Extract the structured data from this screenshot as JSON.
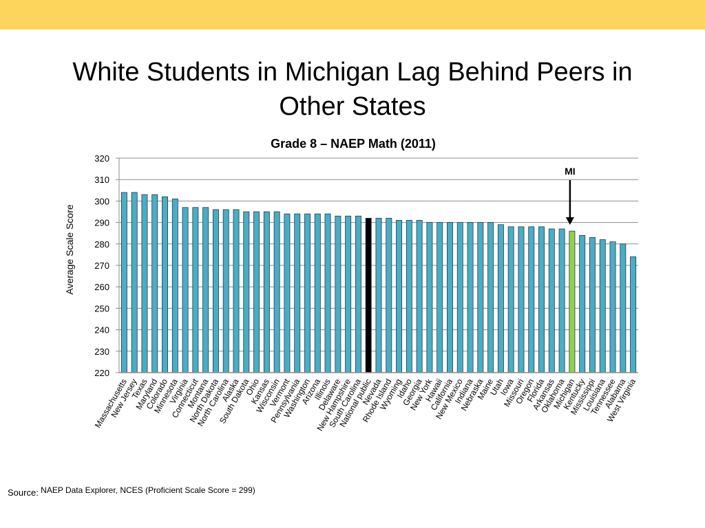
{
  "slide": {
    "title_line1": "White Students in Michigan Lag Behind Peers in",
    "title_line2": "Other States",
    "source_label": "Source:",
    "source_text": "NAEP Data Explorer, NCES (Proficient Scale Score = 299)",
    "top_bar_color": "#fdd55c"
  },
  "chart_data": {
    "type": "bar",
    "title": "Grade 8 – NAEP Math (2011)",
    "ylabel": "Average Scale Score",
    "ylim": [
      220,
      320
    ],
    "yticks": [
      220,
      230,
      240,
      250,
      260,
      270,
      280,
      290,
      300,
      310,
      320
    ],
    "grid": true,
    "annotation": {
      "label": "MI",
      "target": "Michigan"
    },
    "colors": {
      "default": "#4bacc6",
      "highlight_black": "#000000",
      "highlight_green": "#92d050"
    },
    "categories": [
      "Massachusetts",
      "New Jersey",
      "Texas",
      "Maryland",
      "Colorado",
      "Minnesota",
      "Virginia",
      "Connecticut",
      "Montana",
      "North Dakota",
      "North Carolina",
      "Alaska",
      "South Dakota",
      "Ohio",
      "Kansas",
      "Wisconsin",
      "Vermont",
      "Pennsylvania",
      "Washington",
      "Arizona",
      "Illinois",
      "Delaware",
      "New Hampshire",
      "South Carolina",
      "National public",
      "Nevada",
      "Rhode Island",
      "Wyoming",
      "Idaho",
      "Georgia",
      "New York",
      "Hawaii",
      "California",
      "New Mexico",
      "Indiana",
      "Nebraska",
      "Maine",
      "Utah",
      "Iowa",
      "Missouri",
      "Oregon",
      "Florida",
      "Arkansas",
      "Oklahoma",
      "Michigan",
      "Kentucky",
      "Mississippi",
      "Louisiana",
      "Tennessee",
      "Alabama",
      "West Virginia"
    ],
    "values": [
      304,
      304,
      303,
      303,
      302,
      301,
      297,
      297,
      297,
      296,
      296,
      296,
      295,
      295,
      295,
      295,
      294,
      294,
      294,
      294,
      294,
      293,
      293,
      293,
      292,
      292,
      292,
      291,
      291,
      291,
      290,
      290,
      290,
      290,
      290,
      290,
      290,
      289,
      288,
      288,
      288,
      288,
      287,
      287,
      286,
      284,
      283,
      282,
      281,
      280,
      274
    ],
    "bar_colors": {
      "National public": "#000000",
      "Michigan": "#92d050"
    }
  }
}
